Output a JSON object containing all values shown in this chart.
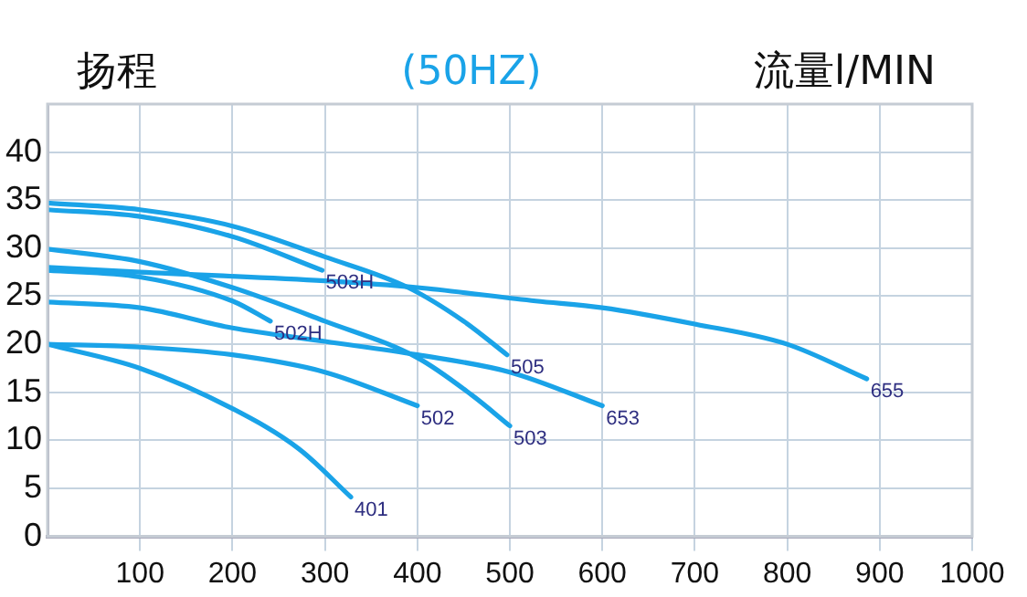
{
  "chart_data": {
    "type": "line",
    "title": "(50HZ)",
    "ylabel": "扬程",
    "xlabel": "流量l/MIN",
    "xlim": [
      0,
      1000
    ],
    "xticks": [
      100,
      200,
      300,
      400,
      500,
      600,
      700,
      800,
      900,
      1000
    ],
    "ylim": [
      0,
      45
    ],
    "yticks": [
      0,
      5,
      10,
      15,
      20,
      25,
      30,
      35,
      40
    ],
    "grid": true,
    "legend": false,
    "marker": "none",
    "line_style": "solid",
    "series": [
      {
        "name": "505",
        "color": "#1aa3e8",
        "x": [
          0,
          100,
          200,
          300,
          390,
          450,
          497
        ],
        "values": [
          34.7,
          34.0,
          32.3,
          29.1,
          25.9,
          22.4,
          18.9
        ]
      },
      {
        "name": "503H",
        "color": "#1aa3e8",
        "x": [
          0,
          100,
          200,
          297
        ],
        "values": [
          34.0,
          33.3,
          31.2,
          27.7
        ]
      },
      {
        "name": "503",
        "color": "#1aa3e8",
        "x": [
          0,
          100,
          200,
          300,
          400,
          459,
          500
        ],
        "values": [
          29.9,
          28.6,
          25.9,
          22.4,
          18.6,
          14.7,
          11.5
        ]
      },
      {
        "name": "655",
        "color": "#1aa3e8",
        "x": [
          0,
          100,
          300,
          400,
          528,
          600,
          700,
          800,
          886
        ],
        "values": [
          28.0,
          27.5,
          26.6,
          25.9,
          24.5,
          23.8,
          22.1,
          20.0,
          16.4
        ]
      },
      {
        "name": "502H",
        "color": "#1aa3e8",
        "x": [
          0,
          100,
          200,
          241
        ],
        "values": [
          27.7,
          27.0,
          24.5,
          22.4
        ]
      },
      {
        "name": "653",
        "color": "#1aa3e8",
        "x": [
          0,
          100,
          200,
          300,
          400,
          500,
          600
        ],
        "values": [
          24.4,
          23.8,
          21.7,
          20.3,
          18.9,
          17.1,
          13.6
        ]
      },
      {
        "name": "502",
        "color": "#1aa3e8",
        "x": [
          0,
          100,
          200,
          300,
          400
        ],
        "values": [
          20.0,
          19.7,
          18.9,
          17.1,
          13.6
        ]
      },
      {
        "name": "401",
        "color": "#1aa3e8",
        "x": [
          0,
          100,
          200,
          272,
          328
        ],
        "values": [
          20.0,
          17.5,
          13.3,
          9.1,
          4.1
        ]
      }
    ]
  }
}
